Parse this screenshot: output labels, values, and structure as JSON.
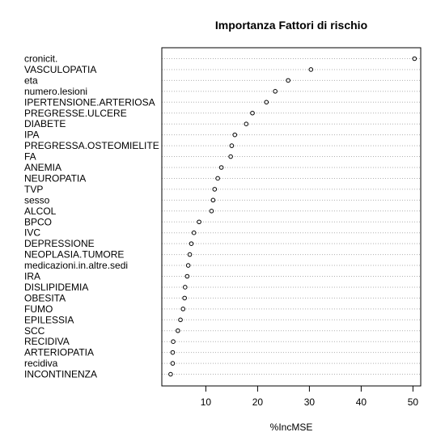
{
  "chart_data": {
    "type": "scatter",
    "title": "Importanza Fattori di rischio",
    "xlabel": "%IncMSE",
    "ylabel": "",
    "xlim": [
      1.5,
      51.5
    ],
    "xticks": [
      10,
      20,
      30,
      40,
      50
    ],
    "xtick_labels": [
      "10",
      "20",
      "30",
      "40",
      "50"
    ],
    "grid": "dotted horizontal lines",
    "categories": [
      "cronicit.",
      "VASCULOPATIA",
      "eta",
      "numero.lesioni",
      "IPERTENSIONE.ARTERIOSA",
      "PREGRESSE.ULCERE",
      "DIABETE",
      "IPA",
      "PREGRESSA.OSTEOMIELITE",
      "FA",
      "ANEMIA",
      "NEUROPATIA",
      "TVP",
      "sesso",
      "ALCOL",
      "BPCO",
      "IVC",
      "DEPRESSIONE",
      "NEOPLASIA.TUMORE",
      "medicazioni.in.altre.sedi",
      "IRA",
      "DISLIPIDEMIA",
      "OBESITA",
      "FUMO",
      "EPILESSIA",
      "SCC",
      "RECIDIVA",
      "ARTERIOPATIA",
      "recidiva",
      "INCONTINENZA"
    ],
    "values": [
      50.3,
      30.3,
      25.9,
      23.4,
      21.7,
      19.0,
      17.8,
      15.6,
      15.0,
      14.8,
      13.0,
      12.3,
      11.7,
      11.4,
      11.1,
      8.7,
      7.7,
      7.2,
      6.9,
      6.6,
      6.4,
      6.0,
      5.9,
      5.6,
      5.1,
      4.6,
      3.7,
      3.6,
      3.6,
      3.2
    ]
  }
}
